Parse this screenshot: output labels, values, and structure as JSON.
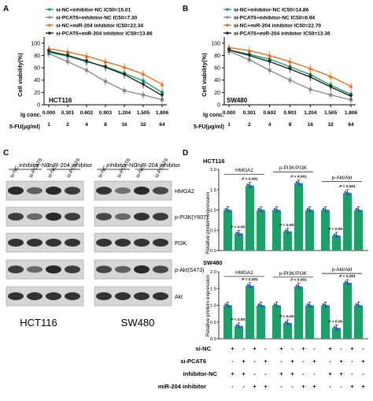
{
  "colors": {
    "green": "#1aa06c",
    "gray": "#8a8a8a",
    "orange": "#e8701a",
    "black": "#222222",
    "blue": "#2d5fd6",
    "bar": "#1f9e6a"
  },
  "panelA": {
    "letter": "A",
    "ylabel": "Cell viability(%)",
    "cell": "HCT116",
    "lg_label": "lg conc.",
    "fu_label": "5-FU(μg/ml)",
    "lg_ticks": [
      "0.000",
      "0.301",
      "0.602",
      "0.903",
      "1.204",
      "1.505",
      "1.806"
    ],
    "fu_ticks": [
      "1",
      "2",
      "4",
      "8",
      "16",
      "32",
      "64"
    ],
    "yticks": [
      "0",
      "20",
      "40",
      "60",
      "80",
      "100"
    ],
    "legend": [
      "si-NC+inhibitor-NC IC50=15.01",
      "si-PCAT6+inhibitor-NC IC50=7.30",
      "si-NC+miR-204 inhibitor IC50=22.34",
      "si-PCAT6+miR-204 inhibitor IC50=13.86"
    ]
  },
  "panelB": {
    "letter": "B",
    "ylabel": "Cell viability(%)",
    "cell": "SW480",
    "lg_label": "lg conc.",
    "fu_label": "5-FU(μg/ml)",
    "lg_ticks": [
      "0.000",
      "0.301",
      "0.602",
      "0.903",
      "1.204",
      "1.505",
      "1.806"
    ],
    "fu_ticks": [
      "1",
      "2",
      "4",
      "8",
      "16",
      "32",
      "64"
    ],
    "yticks": [
      "0",
      "20",
      "40",
      "60",
      "80",
      "100"
    ],
    "legend": [
      "si-NC+inhibitor-NC IC50=14.86",
      "si-PCAT6+inhibitor-NC IC50=6.94",
      "si-NC+miR-204 inhibitor IC50=22.70",
      "si-PCAT6+miR-204 inhibitor IC50=13.36"
    ]
  },
  "panelC": {
    "letter": "C",
    "group1": "inhibitor-NC",
    "group2": "miR-204 inhibitor",
    "lanes": [
      "si-NC",
      "si-PCAT6",
      "si-NC",
      "si-PCAT6"
    ],
    "rows": [
      "HMGA2",
      "p-PI3K(Y607)",
      "PI3K",
      "p-Akt(S473)",
      "Akt"
    ],
    "cell1": "HCT116",
    "cell2": "SW480"
  },
  "panelD": {
    "letter": "D",
    "ylabel": "Relative protein expression",
    "groups": [
      "HMGA2",
      "p-PI3K/PI3K",
      "p-Akt/Akt"
    ],
    "pval": "P < 0.001",
    "table_rows": [
      "si-NC",
      "si-PCAT6",
      "inhibitor-NC",
      "miR-204 inhibitor"
    ],
    "table_signs": [
      [
        "+",
        "-",
        "+",
        "-"
      ],
      [
        "-",
        "+",
        "-",
        "+"
      ],
      [
        "+",
        "+",
        "-",
        "-"
      ],
      [
        "-",
        "-",
        "+",
        "+"
      ]
    ]
  },
  "chart_data": [
    {
      "type": "line",
      "title": "HCT116",
      "xlabel": "lg conc.",
      "ylabel": "Cell viability(%)",
      "ylim": [
        0,
        110
      ],
      "x": [
        0.0,
        0.301,
        0.602,
        0.903,
        1.204,
        1.505,
        1.806
      ],
      "series": [
        {
          "name": "si-NC+inhibitor-NC IC50=15.01",
          "values": [
            85,
            79,
            70,
            62,
            51,
            39,
            20
          ]
        },
        {
          "name": "si-PCAT6+inhibitor-NC IC50=7.30",
          "values": [
            83,
            70,
            56,
            38,
            23,
            16,
            8
          ]
        },
        {
          "name": "si-NC+miR-204 inhibitor IC50=22.34",
          "values": [
            91,
            86,
            79,
            70,
            61,
            50,
            33
          ]
        },
        {
          "name": "si-PCAT6+miR-204 inhibitor IC50=13.86",
          "values": [
            87,
            80,
            71,
            61,
            49,
            33,
            15
          ]
        }
      ]
    },
    {
      "type": "line",
      "title": "SW480",
      "xlabel": "lg conc.",
      "ylabel": "Cell viability(%)",
      "ylim": [
        0,
        110
      ],
      "x": [
        0.0,
        0.301,
        0.602,
        0.903,
        1.204,
        1.505,
        1.806
      ],
      "series": [
        {
          "name": "si-NC+inhibitor-NC IC50=14.86",
          "values": [
            89,
            82,
            74,
            62,
            49,
            32,
            17
          ]
        },
        {
          "name": "si-PCAT6+inhibitor-NC IC50=6.94",
          "values": [
            87,
            73,
            56,
            40,
            25,
            16,
            8
          ]
        },
        {
          "name": "si-NC+miR-204 inhibitor IC50=22.70",
          "values": [
            93,
            88,
            80,
            70,
            59,
            46,
            30
          ]
        },
        {
          "name": "si-PCAT6+miR-204 inhibitor IC50=13.36",
          "values": [
            89,
            80,
            70,
            58,
            45,
            29,
            14
          ]
        }
      ]
    },
    {
      "type": "bar",
      "title": "HCT116",
      "ylabel": "Relative protein expression",
      "ylim": [
        0,
        2.0
      ],
      "categories": [
        "HMGA2",
        "p-PI3K/PI3K",
        "p-Akt/Akt"
      ],
      "series_values": [
        [
          1.0,
          0.42,
          1.6,
          1.0
        ],
        [
          1.0,
          0.47,
          1.66,
          1.0
        ],
        [
          1.0,
          0.37,
          1.42,
          1.0
        ]
      ]
    },
    {
      "type": "bar",
      "title": "SW480",
      "ylabel": "Relative protein expression",
      "ylim": [
        0,
        2.0
      ],
      "categories": [
        "HMGA2",
        "p-PI3K/PI3K",
        "p-Akt/Akt"
      ],
      "series_values": [
        [
          1.0,
          0.38,
          1.58,
          1.0
        ],
        [
          1.0,
          0.47,
          1.56,
          1.0
        ],
        [
          1.0,
          0.32,
          1.67,
          1.0
        ]
      ]
    }
  ]
}
